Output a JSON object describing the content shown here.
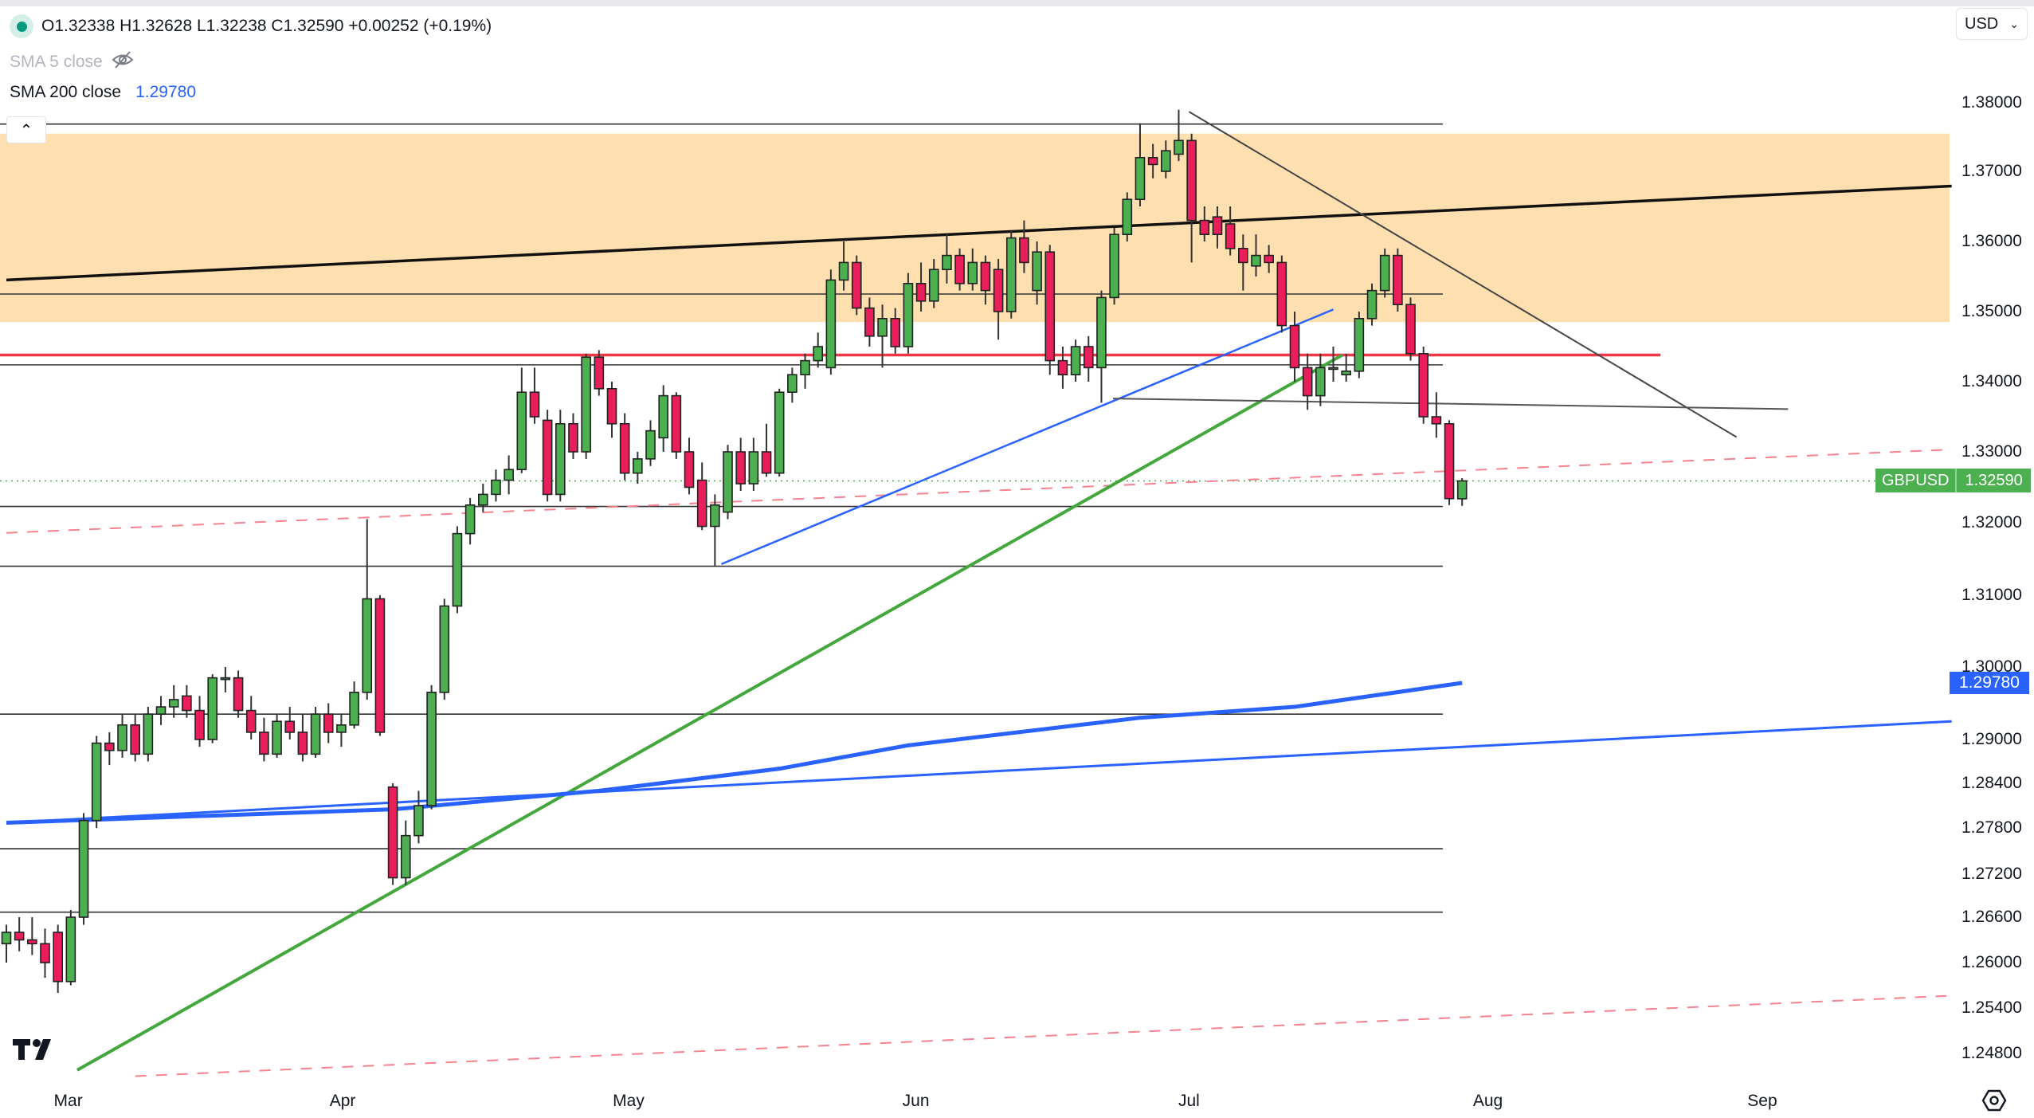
{
  "legend": {
    "ohlc": "O1.32338 H1.32628 L1.32238 C1.32590 +0.00252 (+0.19%)",
    "sma5_label": "SMA 5 close",
    "sma200_label": "SMA 200 close",
    "sma200_value": "1.29780"
  },
  "currency_select": "USD",
  "symbol_label": {
    "symbol": "GBPUSD",
    "price": "1.32590"
  },
  "sma_price_label": "1.29780",
  "icons": {
    "collapse": "chevron-up-icon",
    "visibility": "eye-off-icon",
    "settings": "settings-icon",
    "logo": "tradingview-logo"
  },
  "colors": {
    "up": "#4caf50",
    "down": "#e91e5a",
    "zone": "#fddfb0",
    "sma200": "#2962ff",
    "trend_green": "#43a83c",
    "resistance_red": "#f23645"
  },
  "chart_data": {
    "type": "candlestick",
    "symbol": "GBPUSD",
    "y_ticks": [
      "1.38000",
      "1.37000",
      "1.36000",
      "1.35000",
      "1.34000",
      "1.33000",
      "1.32000",
      "1.31000",
      "1.30000",
      "1.29000",
      "1.28400",
      "1.27800",
      "1.27200",
      "1.26600",
      "1.26000",
      "1.25400",
      "1.24800"
    ],
    "x_ticks": [
      {
        "label": "Mar",
        "index": 4.8
      },
      {
        "label": "Apr",
        "index": 26.1
      },
      {
        "label": "May",
        "index": 48.3
      },
      {
        "label": "Jun",
        "index": 70.6
      },
      {
        "label": "Jul",
        "index": 91.8
      },
      {
        "label": "Aug",
        "index": 115
      },
      {
        "label": "Sep",
        "index": 136.3
      }
    ],
    "last_price": 1.3259,
    "candles_ohlc": [
      [
        1.2625,
        1.265,
        1.26,
        1.264
      ],
      [
        1.264,
        1.266,
        1.2615,
        1.263
      ],
      [
        1.263,
        1.266,
        1.261,
        1.2625
      ],
      [
        1.2625,
        1.2645,
        1.258,
        1.26
      ],
      [
        1.264,
        1.265,
        1.256,
        1.2575
      ],
      [
        1.2575,
        1.267,
        1.257,
        1.266
      ],
      [
        1.266,
        1.28,
        1.265,
        1.279
      ],
      [
        1.279,
        1.2905,
        1.278,
        1.2895
      ],
      [
        1.2895,
        1.291,
        1.2865,
        1.2885
      ],
      [
        1.2885,
        1.2935,
        1.2875,
        1.292
      ],
      [
        1.292,
        1.2935,
        1.287,
        1.288
      ],
      [
        1.288,
        1.2945,
        1.287,
        1.2935
      ],
      [
        1.2935,
        1.296,
        1.292,
        1.2945
      ],
      [
        1.2945,
        1.2975,
        1.293,
        1.2955
      ],
      [
        1.296,
        1.2975,
        1.293,
        1.294
      ],
      [
        1.294,
        1.296,
        1.289,
        1.29
      ],
      [
        1.29,
        1.299,
        1.2895,
        1.2985
      ],
      [
        1.2985,
        1.3,
        1.2965,
        1.2985
      ],
      [
        1.2985,
        1.2995,
        1.293,
        1.294
      ],
      [
        1.294,
        1.296,
        1.29,
        1.291
      ],
      [
        1.291,
        1.293,
        1.287,
        1.288
      ],
      [
        1.288,
        1.2935,
        1.2875,
        1.2925
      ],
      [
        1.2925,
        1.2945,
        1.29,
        1.291
      ],
      [
        1.291,
        1.2935,
        1.287,
        1.288
      ],
      [
        1.288,
        1.2945,
        1.2875,
        1.2935
      ],
      [
        1.2935,
        1.295,
        1.2895,
        1.291
      ],
      [
        1.291,
        1.2935,
        1.289,
        1.292
      ],
      [
        1.292,
        1.298,
        1.2915,
        1.2965
      ],
      [
        1.2965,
        1.3205,
        1.2955,
        1.3095
      ],
      [
        1.3095,
        1.31,
        1.2905,
        1.291
      ],
      [
        1.2835,
        1.284,
        1.2705,
        1.2715
      ],
      [
        1.2715,
        1.279,
        1.2705,
        1.277
      ],
      [
        1.277,
        1.283,
        1.276,
        1.281
      ],
      [
        1.281,
        1.2975,
        1.2805,
        1.2965
      ],
      [
        1.2965,
        1.3095,
        1.2955,
        1.3085
      ],
      [
        1.3085,
        1.3195,
        1.3075,
        1.3185
      ],
      [
        1.3185,
        1.3235,
        1.317,
        1.3225
      ],
      [
        1.3225,
        1.3255,
        1.3215,
        1.324
      ],
      [
        1.324,
        1.3275,
        1.323,
        1.326
      ],
      [
        1.326,
        1.3295,
        1.324,
        1.3275
      ],
      [
        1.3275,
        1.342,
        1.327,
        1.3385
      ],
      [
        1.3385,
        1.342,
        1.334,
        1.335
      ],
      [
        1.3345,
        1.336,
        1.323,
        1.324
      ],
      [
        1.324,
        1.336,
        1.323,
        1.334
      ],
      [
        1.334,
        1.3355,
        1.329,
        1.33
      ],
      [
        1.33,
        1.344,
        1.329,
        1.3435
      ],
      [
        1.3435,
        1.3445,
        1.338,
        1.339
      ],
      [
        1.339,
        1.34,
        1.332,
        1.334
      ],
      [
        1.334,
        1.3355,
        1.326,
        1.327
      ],
      [
        1.327,
        1.33,
        1.3255,
        1.329
      ],
      [
        1.329,
        1.3345,
        1.328,
        1.333
      ],
      [
        1.332,
        1.3395,
        1.33,
        1.338
      ],
      [
        1.338,
        1.3385,
        1.329,
        1.33
      ],
      [
        1.33,
        1.332,
        1.324,
        1.325
      ],
      [
        1.326,
        1.3285,
        1.319,
        1.3195
      ],
      [
        1.3195,
        1.324,
        1.314,
        1.3225
      ],
      [
        1.3215,
        1.331,
        1.3205,
        1.33
      ],
      [
        1.33,
        1.332,
        1.3245,
        1.3255
      ],
      [
        1.3255,
        1.332,
        1.3245,
        1.33
      ],
      [
        1.33,
        1.334,
        1.3265,
        1.327
      ],
      [
        1.327,
        1.339,
        1.3265,
        1.3385
      ],
      [
        1.3385,
        1.342,
        1.337,
        1.341
      ],
      [
        1.341,
        1.344,
        1.339,
        1.343
      ],
      [
        1.343,
        1.347,
        1.342,
        1.345
      ],
      [
        1.342,
        1.356,
        1.341,
        1.3545
      ],
      [
        1.3545,
        1.36,
        1.353,
        1.357
      ],
      [
        1.357,
        1.358,
        1.3495,
        1.3505
      ],
      [
        1.3505,
        1.352,
        1.345,
        1.3465
      ],
      [
        1.3465,
        1.351,
        1.342,
        1.349
      ],
      [
        1.349,
        1.3505,
        1.344,
        1.345
      ],
      [
        1.345,
        1.3555,
        1.344,
        1.354
      ],
      [
        1.354,
        1.357,
        1.35,
        1.3515
      ],
      [
        1.3515,
        1.3575,
        1.3505,
        1.356
      ],
      [
        1.356,
        1.361,
        1.354,
        1.358
      ],
      [
        1.358,
        1.359,
        1.353,
        1.354
      ],
      [
        1.354,
        1.359,
        1.353,
        1.357
      ],
      [
        1.357,
        1.358,
        1.351,
        1.353
      ],
      [
        1.356,
        1.3575,
        1.346,
        1.35
      ],
      [
        1.35,
        1.3615,
        1.349,
        1.3605
      ],
      [
        1.3605,
        1.363,
        1.3555,
        1.357
      ],
      [
        1.353,
        1.36,
        1.351,
        1.3585
      ],
      [
        1.3585,
        1.3595,
        1.341,
        1.343
      ],
      [
        1.343,
        1.345,
        1.339,
        1.341
      ],
      [
        1.341,
        1.346,
        1.34,
        1.345
      ],
      [
        1.345,
        1.3465,
        1.34,
        1.342
      ],
      [
        1.342,
        1.353,
        1.337,
        1.352
      ],
      [
        1.352,
        1.362,
        1.351,
        1.361
      ],
      [
        1.361,
        1.367,
        1.36,
        1.366
      ],
      [
        1.366,
        1.377,
        1.365,
        1.372
      ],
      [
        1.372,
        1.374,
        1.369,
        1.371
      ],
      [
        1.37,
        1.3745,
        1.369,
        1.373
      ],
      [
        1.3725,
        1.379,
        1.3715,
        1.3745
      ],
      [
        1.3745,
        1.3755,
        1.357,
        1.363
      ],
      [
        1.363,
        1.365,
        1.36,
        1.361
      ],
      [
        1.3635,
        1.365,
        1.359,
        1.361
      ],
      [
        1.3625,
        1.365,
        1.358,
        1.359
      ],
      [
        1.359,
        1.361,
        1.353,
        1.357
      ],
      [
        1.3565,
        1.361,
        1.355,
        1.358
      ],
      [
        1.358,
        1.3595,
        1.3555,
        1.357
      ],
      [
        1.357,
        1.358,
        1.347,
        1.348
      ],
      [
        1.348,
        1.35,
        1.34,
        1.342
      ],
      [
        1.342,
        1.344,
        1.336,
        1.338
      ],
      [
        1.338,
        1.344,
        1.3365,
        1.342
      ],
      [
        1.342,
        1.345,
        1.34,
        1.342
      ],
      [
        1.341,
        1.344,
        1.34,
        1.3415
      ],
      [
        1.3415,
        1.35,
        1.3405,
        1.349
      ],
      [
        1.349,
        1.354,
        1.348,
        1.353
      ],
      [
        1.353,
        1.359,
        1.352,
        1.358
      ],
      [
        1.358,
        1.359,
        1.35,
        1.351
      ],
      [
        1.351,
        1.352,
        1.343,
        1.344
      ],
      [
        1.344,
        1.345,
        1.334,
        1.335
      ],
      [
        1.335,
        1.3385,
        1.332,
        1.334
      ],
      [
        1.334,
        1.3345,
        1.3225,
        1.3234
      ],
      [
        1.32338,
        1.32628,
        1.32238,
        1.3259
      ]
    ],
    "zone": {
      "from": 1.3485,
      "to": 1.3755
    },
    "horizontal_levels": [
      1.3769,
      1.3525,
      1.3424,
      1.3223,
      1.314,
      1.2935,
      1.2753,
      1.2667
    ],
    "resistance_level": 1.3438,
    "trendlines": [
      {
        "name": "channel-top",
        "points": [
          [
            0,
            1.3545
          ],
          [
            151,
            1.3679
          ]
        ]
      },
      {
        "name": "blue-uptrend",
        "points": [
          [
            55.5,
            1.3143
          ],
          [
            103,
            1.3503
          ]
        ]
      },
      {
        "name": "green-uptrend",
        "points": [
          [
            5.5,
            1.2458
          ],
          [
            103.7,
            1.3438
          ]
        ]
      },
      {
        "name": "descending",
        "points": [
          [
            91.8,
            1.3787
          ],
          [
            134.3,
            1.3321
          ]
        ]
      },
      {
        "name": "flat-support",
        "points": [
          [
            85.9,
            1.3376
          ],
          [
            138.3,
            1.3361
          ]
        ]
      },
      {
        "name": "blue-long",
        "points": [
          [
            0,
            1.2787
          ],
          [
            151,
            1.2925
          ]
        ]
      }
    ],
    "dashed_lines": [
      {
        "name": "red-dashed-upper",
        "points": [
          [
            0,
            1.3186
          ],
          [
            150.6,
            1.3303
          ]
        ]
      },
      {
        "name": "red-dashed-lower",
        "points": [
          [
            10,
            1.245
          ],
          [
            150.6,
            1.2556
          ]
        ]
      }
    ],
    "sma200": [
      [
        0,
        1.2787
      ],
      [
        30,
        1.2805
      ],
      [
        46,
        1.283
      ],
      [
        60,
        1.286
      ],
      [
        70,
        1.2892
      ],
      [
        88,
        1.293
      ],
      [
        100,
        1.2945
      ],
      [
        113,
        1.2978
      ]
    ]
  }
}
